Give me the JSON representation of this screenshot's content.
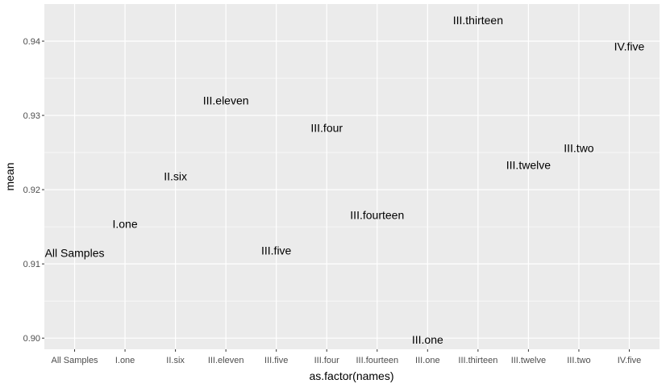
{
  "chart_data": {
    "type": "scatter",
    "title": "",
    "xlabel": "as.factor(names)",
    "ylabel": "mean",
    "categories": [
      "All Samples",
      "I.one",
      "II.six",
      "III.eleven",
      "III.five",
      "III.four",
      "III.fourteen",
      "III.one",
      "III.thirteen",
      "III.twelve",
      "III.two",
      "IV.five"
    ],
    "points": [
      {
        "x": "All Samples",
        "y": 0.9115,
        "label": "All Samples"
      },
      {
        "x": "I.one",
        "y": 0.9154,
        "label": "I.one"
      },
      {
        "x": "II.six",
        "y": 0.9218,
        "label": "II.six"
      },
      {
        "x": "III.eleven",
        "y": 0.932,
        "label": "III.eleven"
      },
      {
        "x": "III.five",
        "y": 0.9118,
        "label": "III.five"
      },
      {
        "x": "III.four",
        "y": 0.9283,
        "label": "III.four"
      },
      {
        "x": "III.fourteen",
        "y": 0.9166,
        "label": "III.fourteen"
      },
      {
        "x": "III.one",
        "y": 0.8998,
        "label": "III.one"
      },
      {
        "x": "III.thirteen",
        "y": 0.9428,
        "label": "III.thirteen"
      },
      {
        "x": "III.twelve",
        "y": 0.9233,
        "label": "III.twelve"
      },
      {
        "x": "III.two",
        "y": 0.9256,
        "label": "III.two"
      },
      {
        "x": "IV.five",
        "y": 0.9393,
        "label": "IV.five"
      }
    ],
    "ylim": [
      0.8985,
      0.945
    ],
    "yticks": [
      0.9,
      0.91,
      0.92,
      0.93,
      0.94
    ],
    "ytick_labels": [
      "0.90",
      "0.91",
      "0.92",
      "0.93",
      "0.94"
    ],
    "grid": true,
    "panel_color": "#ebebeb",
    "grid_color": "#ffffff"
  }
}
